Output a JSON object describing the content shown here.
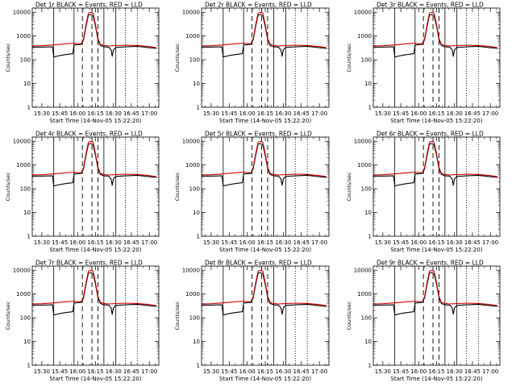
{
  "panels": [
    {
      "title": "Det 1r  BLACK = Events, RED = LLD"
    },
    {
      "title": "Det 2r  BLACK = Events, RED = LLD"
    },
    {
      "title": "Det 3r  BLACK = Events, RED = LLD"
    },
    {
      "title": "Det 4r  BLACK = Events, RED = LLD"
    },
    {
      "title": "Det 5r  BLACK = Events, RED = LLD"
    },
    {
      "title": "Det 6r  BLACK = Events, RED = LLD"
    },
    {
      "title": "Det 7r  BLACK = Events, RED = LLD"
    },
    {
      "title": "Det 8r  BLACK = Events, RED = LLD"
    },
    {
      "title": "Det 9r  BLACK = Events, RED = LLD"
    }
  ],
  "colors": {
    "events": "#000000",
    "lld": "#cc0000"
  },
  "chart_data": {
    "type": "line",
    "layout": "3x3 grid",
    "ylabel": "Counts/sec",
    "xlabel": "Start Time (14-Nov-05 15:22:20)",
    "yscale": "log",
    "ylim": [
      1,
      15000
    ],
    "y_ticks": [
      1,
      10,
      100,
      1000,
      10000
    ],
    "y_tick_labels": [
      "1",
      "10",
      "100",
      "1000",
      "10000"
    ],
    "xlim": [
      "15:22",
      "17:08"
    ],
    "x_ticks": [
      "15:30",
      "15:45",
      "16:00",
      "16:15",
      "16:30",
      "16:45",
      "17:00"
    ],
    "vertical_lines": {
      "solid": [
        "15:40",
        "15:57",
        "16:22",
        "16:32"
      ],
      "dashed": [
        "16:04",
        "16:12",
        "16:17"
      ],
      "dotted": [
        "16:40",
        "16:50"
      ]
    },
    "series": [
      {
        "name": "Events",
        "x": [
          "15:22",
          "15:30",
          "15:39",
          "15:40",
          "15:45",
          "15:50",
          "15:56",
          "15:57",
          "16:00",
          "16:03",
          "16:05",
          "16:07",
          "16:09",
          "16:11",
          "16:13",
          "16:15",
          "16:17",
          "16:19",
          "16:22",
          "16:26",
          "16:28",
          "16:29",
          "16:30",
          "16:32",
          "16:40",
          "16:50",
          "17:00",
          "17:06"
        ],
        "y": [
          340,
          340,
          350,
          130,
          150,
          165,
          180,
          420,
          430,
          440,
          700,
          2500,
          7500,
          8000,
          7000,
          2500,
          700,
          400,
          350,
          340,
          260,
          140,
          260,
          330,
          350,
          370,
          320,
          300
        ]
      },
      {
        "name": "LLD",
        "x": [
          "15:22",
          "15:30",
          "15:40",
          "15:50",
          "15:57",
          "16:00",
          "16:03",
          "16:05",
          "16:07",
          "16:09",
          "16:11",
          "16:13",
          "16:15",
          "16:17",
          "16:19",
          "16:22",
          "16:26",
          "16:30",
          "16:40",
          "16:50",
          "17:00",
          "17:06"
        ],
        "y": [
          380,
          390,
          420,
          470,
          500,
          480,
          470,
          800,
          3000,
          9000,
          10000,
          9000,
          3000,
          800,
          450,
          400,
          380,
          390,
          410,
          400,
          360,
          320
        ]
      }
    ]
  }
}
